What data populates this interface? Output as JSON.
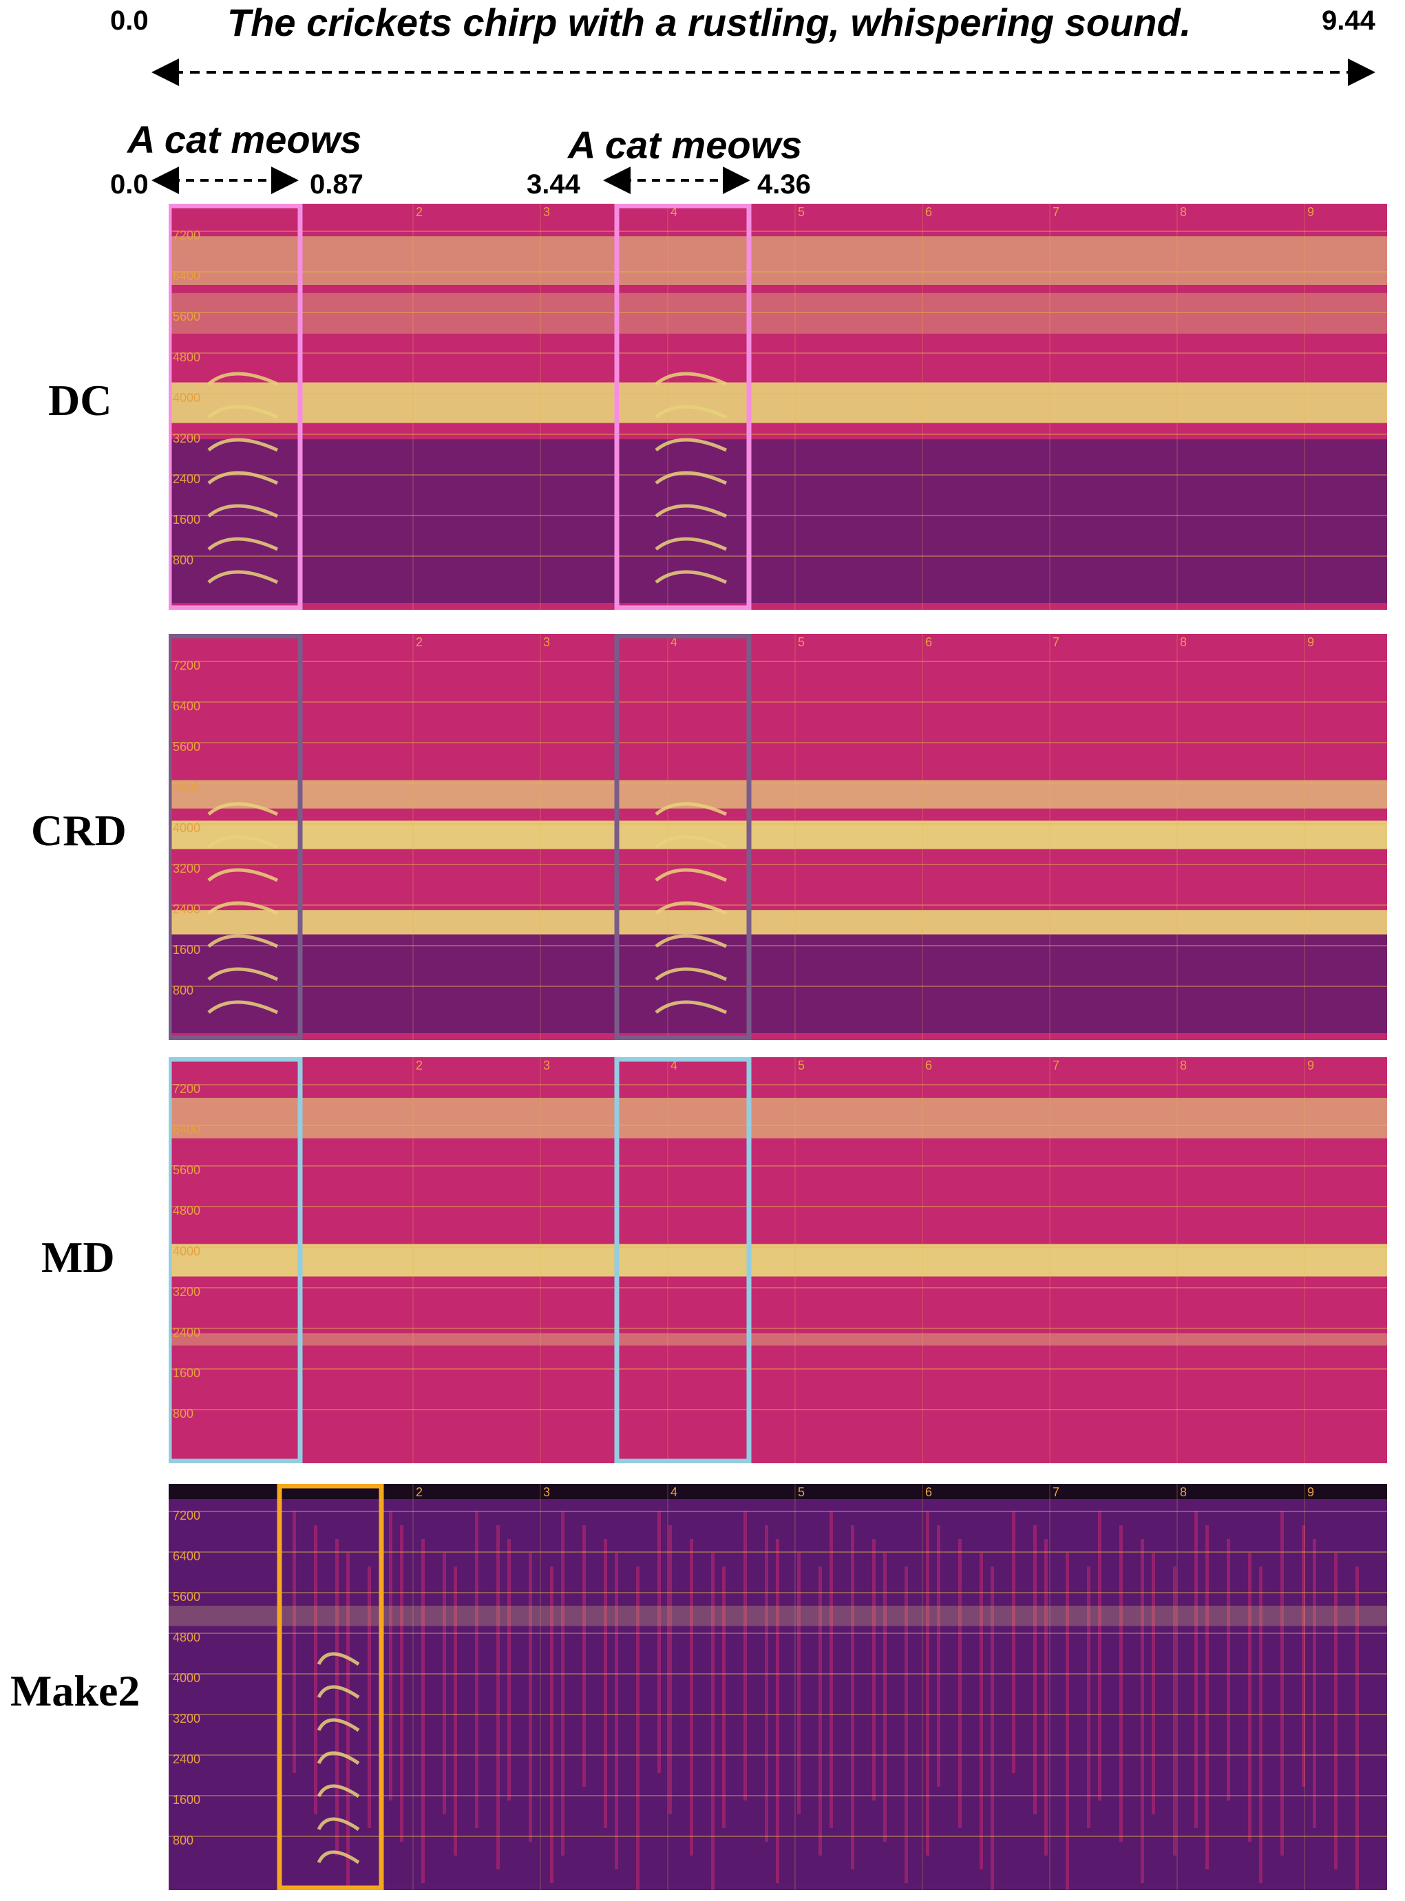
{
  "caption": {
    "text": "The crickets chirp with a rustling, whispering sound.",
    "start": "0.0",
    "end": "9.44"
  },
  "events": [
    {
      "label": "A cat meows",
      "start": "0.0",
      "end": "0.87"
    },
    {
      "label": "A cat meows",
      "start": "3.44",
      "end": "4.36"
    }
  ],
  "freq_ticks": [
    "7200",
    "6400",
    "5600",
    "4800",
    "4000",
    "3200",
    "2400",
    "1600",
    "800"
  ],
  "time_ticks": [
    "2",
    "3",
    "4",
    "5",
    "6",
    "7",
    "8",
    "9"
  ],
  "rows": [
    {
      "label": "DC",
      "box_color": "#f58ee3"
    },
    {
      "label": "CRD",
      "box_color": "#7a5c8a"
    },
    {
      "label": "MD",
      "box_color": "#93cde2"
    },
    {
      "label": "Make2",
      "box_color": "#f5a81b"
    }
  ],
  "colors": {
    "spectro_low": "#5a1a6e",
    "spectro_mid": "#c4286e",
    "spectro_high": "#e8d27a",
    "gridline": "#e6b84a",
    "tick_text": "#e8a040"
  }
}
